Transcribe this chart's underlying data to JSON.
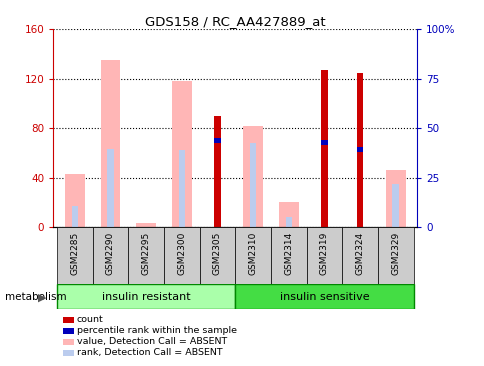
{
  "title": "GDS158 / RC_AA427889_at",
  "samples": [
    "GSM2285",
    "GSM2290",
    "GSM2295",
    "GSM2300",
    "GSM2305",
    "GSM2310",
    "GSM2314",
    "GSM2319",
    "GSM2324",
    "GSM2329"
  ],
  "group_label": "metabolism",
  "group1_label": "insulin resistant",
  "group2_label": "insulin sensitive",
  "group1_color": "#AAFFAA",
  "group2_color": "#44DD44",
  "group1_indices": [
    0,
    1,
    2,
    3,
    4
  ],
  "group2_indices": [
    5,
    6,
    7,
    8,
    9
  ],
  "pink_bars": [
    43,
    135,
    3,
    118,
    0,
    82,
    20,
    0,
    0,
    46
  ],
  "light_blue_bars": [
    17,
    63,
    0,
    62,
    0,
    68,
    8,
    0,
    0,
    35
  ],
  "red_bars": [
    0,
    0,
    0,
    0,
    90,
    0,
    0,
    127,
    125,
    0
  ],
  "blue_marker": [
    0,
    0,
    0,
    0,
    70,
    0,
    0,
    68,
    63,
    0
  ],
  "ylim_left": [
    0,
    160
  ],
  "ylim_right": [
    0,
    100
  ],
  "yticks_left": [
    0,
    40,
    80,
    120,
    160
  ],
  "yticks_right": [
    0,
    25,
    50,
    75,
    100
  ],
  "ytick_labels_left": [
    "0",
    "40",
    "80",
    "120",
    "160"
  ],
  "ytick_labels_right": [
    "0",
    "25",
    "50",
    "75",
    "100%"
  ],
  "legend_items": [
    {
      "label": "count",
      "color": "#CC0000"
    },
    {
      "label": "percentile rank within the sample",
      "color": "#0000BB"
    },
    {
      "label": "value, Detection Call = ABSENT",
      "color": "#FFB6B6"
    },
    {
      "label": "rank, Detection Call = ABSENT",
      "color": "#BBCCEE"
    }
  ],
  "pink_bar_width": 0.55,
  "blue_bar_width": 0.18,
  "red_bar_width": 0.18,
  "tick_color_left": "#CC0000",
  "tick_color_right": "#0000BB",
  "sample_box_color": "#CCCCCC",
  "bg_color": "#FFFFFF"
}
